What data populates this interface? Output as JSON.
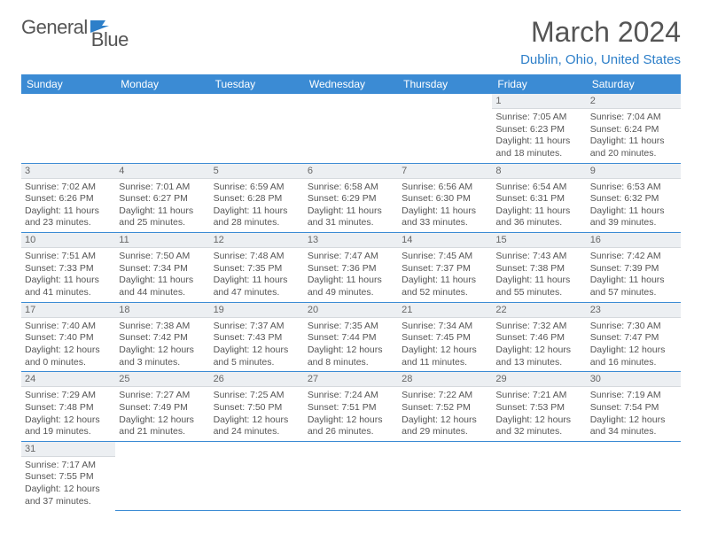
{
  "brand": {
    "word1": "General",
    "word2": "Blue"
  },
  "header": {
    "title": "March 2024",
    "location": "Dublin, Ohio, United States"
  },
  "colors": {
    "accent": "#3b8bd4",
    "link": "#2d7fc9",
    "dayheader_bg": "#eceff2",
    "text": "#555"
  },
  "weekdays": [
    "Sunday",
    "Monday",
    "Tuesday",
    "Wednesday",
    "Thursday",
    "Friday",
    "Saturday"
  ],
  "weeks": [
    [
      null,
      null,
      null,
      null,
      null,
      {
        "n": "1",
        "sr": "7:05 AM",
        "ss": "6:23 PM",
        "dl": "11 hours and 18 minutes."
      },
      {
        "n": "2",
        "sr": "7:04 AM",
        "ss": "6:24 PM",
        "dl": "11 hours and 20 minutes."
      }
    ],
    [
      {
        "n": "3",
        "sr": "7:02 AM",
        "ss": "6:26 PM",
        "dl": "11 hours and 23 minutes."
      },
      {
        "n": "4",
        "sr": "7:01 AM",
        "ss": "6:27 PM",
        "dl": "11 hours and 25 minutes."
      },
      {
        "n": "5",
        "sr": "6:59 AM",
        "ss": "6:28 PM",
        "dl": "11 hours and 28 minutes."
      },
      {
        "n": "6",
        "sr": "6:58 AM",
        "ss": "6:29 PM",
        "dl": "11 hours and 31 minutes."
      },
      {
        "n": "7",
        "sr": "6:56 AM",
        "ss": "6:30 PM",
        "dl": "11 hours and 33 minutes."
      },
      {
        "n": "8",
        "sr": "6:54 AM",
        "ss": "6:31 PM",
        "dl": "11 hours and 36 minutes."
      },
      {
        "n": "9",
        "sr": "6:53 AM",
        "ss": "6:32 PM",
        "dl": "11 hours and 39 minutes."
      }
    ],
    [
      {
        "n": "10",
        "sr": "7:51 AM",
        "ss": "7:33 PM",
        "dl": "11 hours and 41 minutes."
      },
      {
        "n": "11",
        "sr": "7:50 AM",
        "ss": "7:34 PM",
        "dl": "11 hours and 44 minutes."
      },
      {
        "n": "12",
        "sr": "7:48 AM",
        "ss": "7:35 PM",
        "dl": "11 hours and 47 minutes."
      },
      {
        "n": "13",
        "sr": "7:47 AM",
        "ss": "7:36 PM",
        "dl": "11 hours and 49 minutes."
      },
      {
        "n": "14",
        "sr": "7:45 AM",
        "ss": "7:37 PM",
        "dl": "11 hours and 52 minutes."
      },
      {
        "n": "15",
        "sr": "7:43 AM",
        "ss": "7:38 PM",
        "dl": "11 hours and 55 minutes."
      },
      {
        "n": "16",
        "sr": "7:42 AM",
        "ss": "7:39 PM",
        "dl": "11 hours and 57 minutes."
      }
    ],
    [
      {
        "n": "17",
        "sr": "7:40 AM",
        "ss": "7:40 PM",
        "dl": "12 hours and 0 minutes."
      },
      {
        "n": "18",
        "sr": "7:38 AM",
        "ss": "7:42 PM",
        "dl": "12 hours and 3 minutes."
      },
      {
        "n": "19",
        "sr": "7:37 AM",
        "ss": "7:43 PM",
        "dl": "12 hours and 5 minutes."
      },
      {
        "n": "20",
        "sr": "7:35 AM",
        "ss": "7:44 PM",
        "dl": "12 hours and 8 minutes."
      },
      {
        "n": "21",
        "sr": "7:34 AM",
        "ss": "7:45 PM",
        "dl": "12 hours and 11 minutes."
      },
      {
        "n": "22",
        "sr": "7:32 AM",
        "ss": "7:46 PM",
        "dl": "12 hours and 13 minutes."
      },
      {
        "n": "23",
        "sr": "7:30 AM",
        "ss": "7:47 PM",
        "dl": "12 hours and 16 minutes."
      }
    ],
    [
      {
        "n": "24",
        "sr": "7:29 AM",
        "ss": "7:48 PM",
        "dl": "12 hours and 19 minutes."
      },
      {
        "n": "25",
        "sr": "7:27 AM",
        "ss": "7:49 PM",
        "dl": "12 hours and 21 minutes."
      },
      {
        "n": "26",
        "sr": "7:25 AM",
        "ss": "7:50 PM",
        "dl": "12 hours and 24 minutes."
      },
      {
        "n": "27",
        "sr": "7:24 AM",
        "ss": "7:51 PM",
        "dl": "12 hours and 26 minutes."
      },
      {
        "n": "28",
        "sr": "7:22 AM",
        "ss": "7:52 PM",
        "dl": "12 hours and 29 minutes."
      },
      {
        "n": "29",
        "sr": "7:21 AM",
        "ss": "7:53 PM",
        "dl": "12 hours and 32 minutes."
      },
      {
        "n": "30",
        "sr": "7:19 AM",
        "ss": "7:54 PM",
        "dl": "12 hours and 34 minutes."
      }
    ],
    [
      {
        "n": "31",
        "sr": "7:17 AM",
        "ss": "7:55 PM",
        "dl": "12 hours and 37 minutes."
      },
      null,
      null,
      null,
      null,
      null,
      null
    ]
  ],
  "labels": {
    "sunrise": "Sunrise: ",
    "sunset": "Sunset: ",
    "daylight": "Daylight: "
  }
}
